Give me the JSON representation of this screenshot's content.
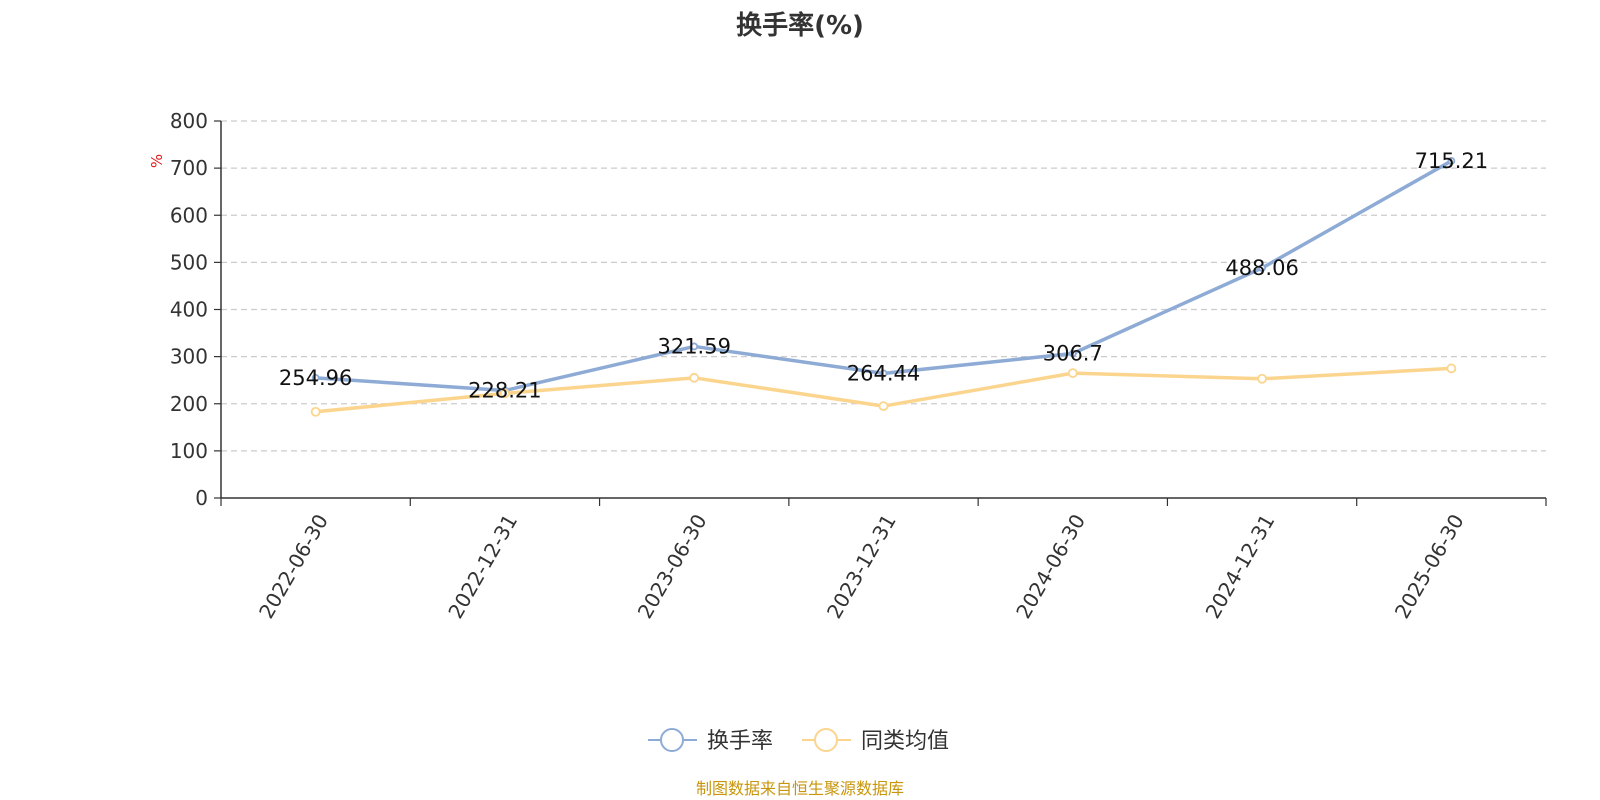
{
  "title": "换手率(%)",
  "source_note": "制图数据来自恒生聚源数据库",
  "colors": {
    "series_turnover": "#8eabd6",
    "series_peer_avg": "#fbd58e",
    "unit": "#e11d1d",
    "source": "#c8960c",
    "grid": "#cccccc",
    "axis": "#333333"
  },
  "chart_data": {
    "type": "line",
    "title": "换手率(%)",
    "ylabel": "%",
    "xlabel": "",
    "x": [
      "2022-06-30",
      "2022-12-31",
      "2023-06-30",
      "2023-12-31",
      "2024-06-30",
      "2024-12-31",
      "2025-06-30"
    ],
    "ylim": [
      0,
      800
    ],
    "yticks": [
      0,
      100,
      200,
      300,
      400,
      500,
      600,
      700,
      800
    ],
    "grid": true,
    "legend_position": "bottom-center",
    "series": [
      {
        "name": "换手率",
        "values": [
          254.96,
          228.21,
          321.59,
          264.44,
          306.7,
          488.06,
          715.21
        ],
        "labels": [
          "254.96",
          "228.21",
          "321.59",
          "264.44",
          "306.7",
          "488.06",
          "715.21"
        ]
      },
      {
        "name": "同类均值",
        "values": [
          183,
          222,
          255,
          195,
          265,
          253,
          275
        ]
      }
    ]
  }
}
